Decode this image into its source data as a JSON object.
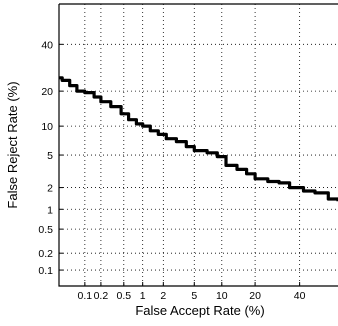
{
  "chart_data": {
    "type": "line",
    "xlabel": "False Accept Rate (%)",
    "ylabel": "False Reject Rate (%)",
    "x_scale": "normal-deviate",
    "y_scale": "normal-deviate",
    "xlim": [
      0.03,
      60
    ],
    "ylim": [
      0.05,
      60
    ],
    "x_ticks": [
      0.1,
      0.2,
      0.5,
      1,
      2,
      5,
      10,
      20,
      40
    ],
    "x_tick_labels": [
      "0.1",
      "0.2",
      "0.5",
      "1",
      "2",
      "5",
      "10",
      "20",
      "40"
    ],
    "y_ticks": [
      0.1,
      0.2,
      0.5,
      1,
      2,
      5,
      10,
      20,
      40
    ],
    "y_tick_labels": [
      "0.1",
      "0.2",
      "0.5",
      "1",
      "2",
      "5",
      "10",
      "20",
      "40"
    ],
    "grid": true,
    "series": [
      {
        "color": "#000000",
        "x": [
          0.03,
          0.035,
          0.05,
          0.07,
          0.1,
          0.15,
          0.2,
          0.3,
          0.45,
          0.6,
          0.8,
          1.0,
          1.3,
          1.7,
          2.2,
          3.0,
          4.0,
          5.0,
          7.0,
          9.0,
          11.0,
          14.0,
          17.0,
          20.0,
          25.0,
          30.0,
          35.0,
          42.0,
          48.0,
          55.0,
          60.0
        ],
        "y": [
          25,
          24,
          22,
          20,
          19.5,
          18,
          16.5,
          15,
          13,
          11.5,
          10.5,
          10,
          9,
          8.3,
          7.5,
          7,
          6.2,
          5.6,
          5.3,
          4.8,
          3.8,
          3.4,
          3.0,
          2.6,
          2.4,
          2.3,
          2.0,
          1.8,
          1.7,
          1.4,
          1.3
        ]
      }
    ]
  }
}
